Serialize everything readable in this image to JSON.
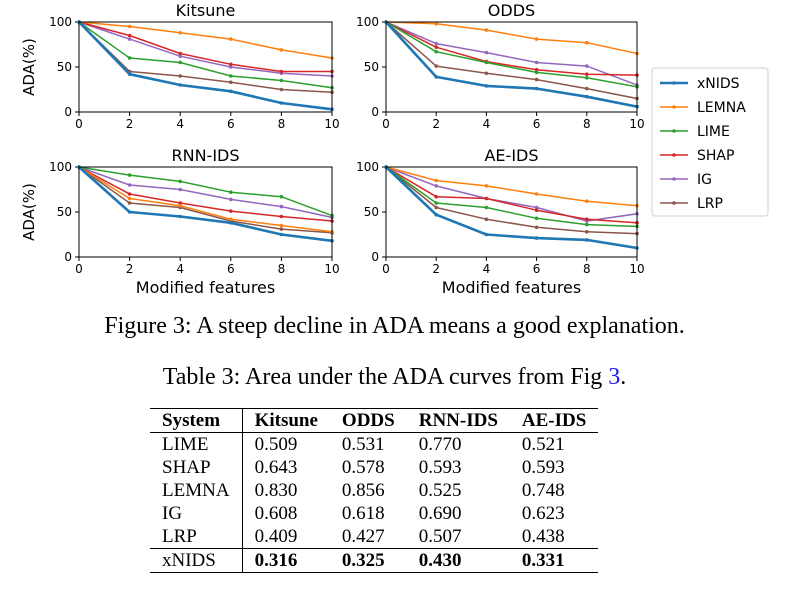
{
  "chart_data": [
    {
      "type": "line",
      "title": "Kitsune",
      "ylabel": "ADA(%)",
      "xlabel": "",
      "x": [
        0,
        2,
        4,
        6,
        8,
        10
      ],
      "xlim": [
        0,
        10
      ],
      "ylim": [
        0,
        100
      ],
      "series": [
        {
          "name": "xNIDS",
          "values": [
            100,
            42,
            30,
            23,
            10,
            3
          ]
        },
        {
          "name": "LEMNA",
          "values": [
            100,
            95,
            88,
            81,
            69,
            60
          ]
        },
        {
          "name": "LIME",
          "values": [
            100,
            60,
            55,
            40,
            35,
            27
          ]
        },
        {
          "name": "SHAP",
          "values": [
            100,
            85,
            65,
            53,
            45,
            45
          ]
        },
        {
          "name": "IG",
          "values": [
            100,
            81,
            62,
            50,
            43,
            40
          ]
        },
        {
          "name": "LRP",
          "values": [
            100,
            45,
            40,
            33,
            25,
            22
          ]
        }
      ]
    },
    {
      "type": "line",
      "title": "ODDS",
      "ylabel": "",
      "xlabel": "",
      "x": [
        0,
        2,
        4,
        6,
        8,
        10
      ],
      "xlim": [
        0,
        10
      ],
      "ylim": [
        0,
        100
      ],
      "series": [
        {
          "name": "xNIDS",
          "values": [
            100,
            39,
            29,
            26,
            17,
            6
          ]
        },
        {
          "name": "LEMNA",
          "values": [
            100,
            98,
            91,
            81,
            77,
            65
          ]
        },
        {
          "name": "LIME",
          "values": [
            100,
            67,
            55,
            44,
            38,
            28
          ]
        },
        {
          "name": "SHAP",
          "values": [
            100,
            72,
            56,
            47,
            42,
            41
          ]
        },
        {
          "name": "IG",
          "values": [
            100,
            76,
            66,
            55,
            51,
            30
          ]
        },
        {
          "name": "LRP",
          "values": [
            100,
            51,
            43,
            36,
            26,
            15
          ]
        }
      ]
    },
    {
      "type": "line",
      "title": "RNN-IDS",
      "ylabel": "ADA(%)",
      "xlabel": "Modified features",
      "x": [
        0,
        2,
        4,
        6,
        8,
        10
      ],
      "xlim": [
        0,
        10
      ],
      "ylim": [
        0,
        100
      ],
      "series": [
        {
          "name": "xNIDS",
          "values": [
            100,
            50,
            45,
            38,
            25,
            18
          ]
        },
        {
          "name": "LEMNA",
          "values": [
            100,
            65,
            57,
            42,
            35,
            28
          ]
        },
        {
          "name": "LIME",
          "values": [
            100,
            91,
            84,
            72,
            67,
            46
          ]
        },
        {
          "name": "SHAP",
          "values": [
            100,
            70,
            60,
            51,
            45,
            40
          ]
        },
        {
          "name": "IG",
          "values": [
            100,
            80,
            75,
            64,
            56,
            44
          ]
        },
        {
          "name": "LRP",
          "values": [
            100,
            60,
            55,
            40,
            31,
            27
          ]
        }
      ]
    },
    {
      "type": "line",
      "title": "AE-IDS",
      "ylabel": "",
      "xlabel": "Modified features",
      "x": [
        0,
        2,
        4,
        6,
        8,
        10
      ],
      "xlim": [
        0,
        10
      ],
      "ylim": [
        0,
        100
      ],
      "series": [
        {
          "name": "xNIDS",
          "values": [
            100,
            47,
            25,
            21,
            19,
            10
          ]
        },
        {
          "name": "LEMNA",
          "values": [
            100,
            85,
            79,
            70,
            62,
            57
          ]
        },
        {
          "name": "LIME",
          "values": [
            100,
            60,
            55,
            43,
            36,
            34
          ]
        },
        {
          "name": "SHAP",
          "values": [
            100,
            67,
            65,
            52,
            42,
            38
          ]
        },
        {
          "name": "IG",
          "values": [
            100,
            79,
            65,
            55,
            40,
            48
          ]
        },
        {
          "name": "LRP",
          "values": [
            100,
            55,
            42,
            33,
            28,
            26
          ]
        }
      ]
    }
  ],
  "legend": {
    "placement": "right",
    "entries": [
      {
        "name": "xNIDS",
        "color": "#1f77b4",
        "bold": true
      },
      {
        "name": "LEMNA",
        "color": "#ff7f0e",
        "bold": false
      },
      {
        "name": "LIME",
        "color": "#2ca02c",
        "bold": false
      },
      {
        "name": "SHAP",
        "color": "#d62728",
        "bold": false
      },
      {
        "name": "IG",
        "color": "#9467bd",
        "bold": false
      },
      {
        "name": "LRP",
        "color": "#8c564b",
        "bold": false
      }
    ]
  },
  "figure_caption": "Figure 3: A steep decline in ADA means a good explanation.",
  "table": {
    "caption_prefix": "Table 3: Area under the ADA curves from Fig ",
    "caption_ref": "3",
    "caption_suffix": ".",
    "headers": [
      "System",
      "Kitsune",
      "ODDS",
      "RNN-IDS",
      "AE-IDS"
    ],
    "rows": [
      [
        "LIME",
        "0.509",
        "0.531",
        "0.770",
        "0.521"
      ],
      [
        "SHAP",
        "0.643",
        "0.578",
        "0.593",
        "0.593"
      ],
      [
        "LEMNA",
        "0.830",
        "0.856",
        "0.525",
        "0.748"
      ],
      [
        "IG",
        "0.608",
        "0.618",
        "0.690",
        "0.623"
      ],
      [
        "LRP",
        "0.409",
        "0.427",
        "0.507",
        "0.438"
      ],
      [
        "xNIDS",
        "0.316",
        "0.325",
        "0.430",
        "0.331"
      ]
    ]
  }
}
